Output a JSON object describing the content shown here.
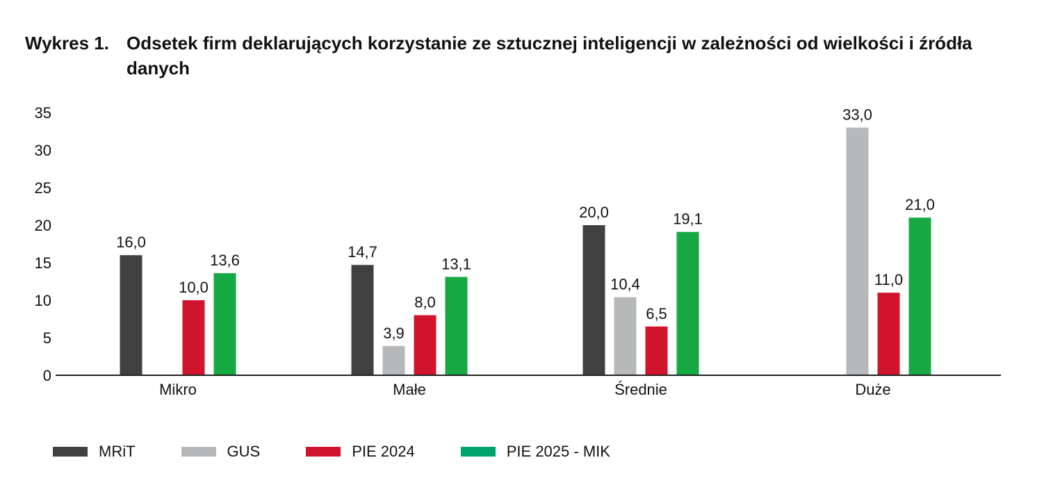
{
  "title": {
    "prefix": "Wykres 1.",
    "text": "Odsetek firm deklarujących korzystanie ze sztucznej inteligencji w zależności od wielkości i źródła danych"
  },
  "chart_data": {
    "type": "bar",
    "categories": [
      "Mikro",
      "Małe",
      "Średnie",
      "Duże"
    ],
    "series": [
      {
        "name": "MRiT",
        "color": "#404040",
        "values": [
          16.0,
          14.7,
          20.0,
          null
        ]
      },
      {
        "name": "GUS",
        "color": "#b7b8ba",
        "values": [
          null,
          3.9,
          10.4,
          33.0
        ]
      },
      {
        "name": "PIE 2024",
        "color": "#d0142c",
        "values": [
          10.0,
          8.0,
          6.5,
          11.0
        ]
      },
      {
        "name": "PIE 2025 - MIK",
        "color": "#16a843",
        "values": [
          13.6,
          13.1,
          19.1,
          21.0
        ]
      }
    ],
    "data_labels": [
      [
        "16,0",
        "14,7",
        "20,0",
        ""
      ],
      [
        "",
        "3,9",
        "10,4",
        "33,0"
      ],
      [
        "10,0",
        "8,0",
        "6,5",
        "11,0"
      ],
      [
        "13,6",
        "13,1",
        "19,1",
        "21,0"
      ]
    ],
    "yticks": [
      "0",
      "5",
      "10",
      "15",
      "20",
      "25",
      "30",
      "35"
    ],
    "ylim": [
      0,
      35
    ],
    "grid": false,
    "legend_position": "bottom-left"
  },
  "legend": {
    "items": [
      {
        "label": "MRiT",
        "color": "#404040"
      },
      {
        "label": "GUS",
        "color": "#b7b8ba"
      },
      {
        "label": "PIE 2024",
        "color": "#d0142c"
      },
      {
        "label": "PIE 2025 - MIK",
        "color": "#00a36c"
      }
    ]
  }
}
